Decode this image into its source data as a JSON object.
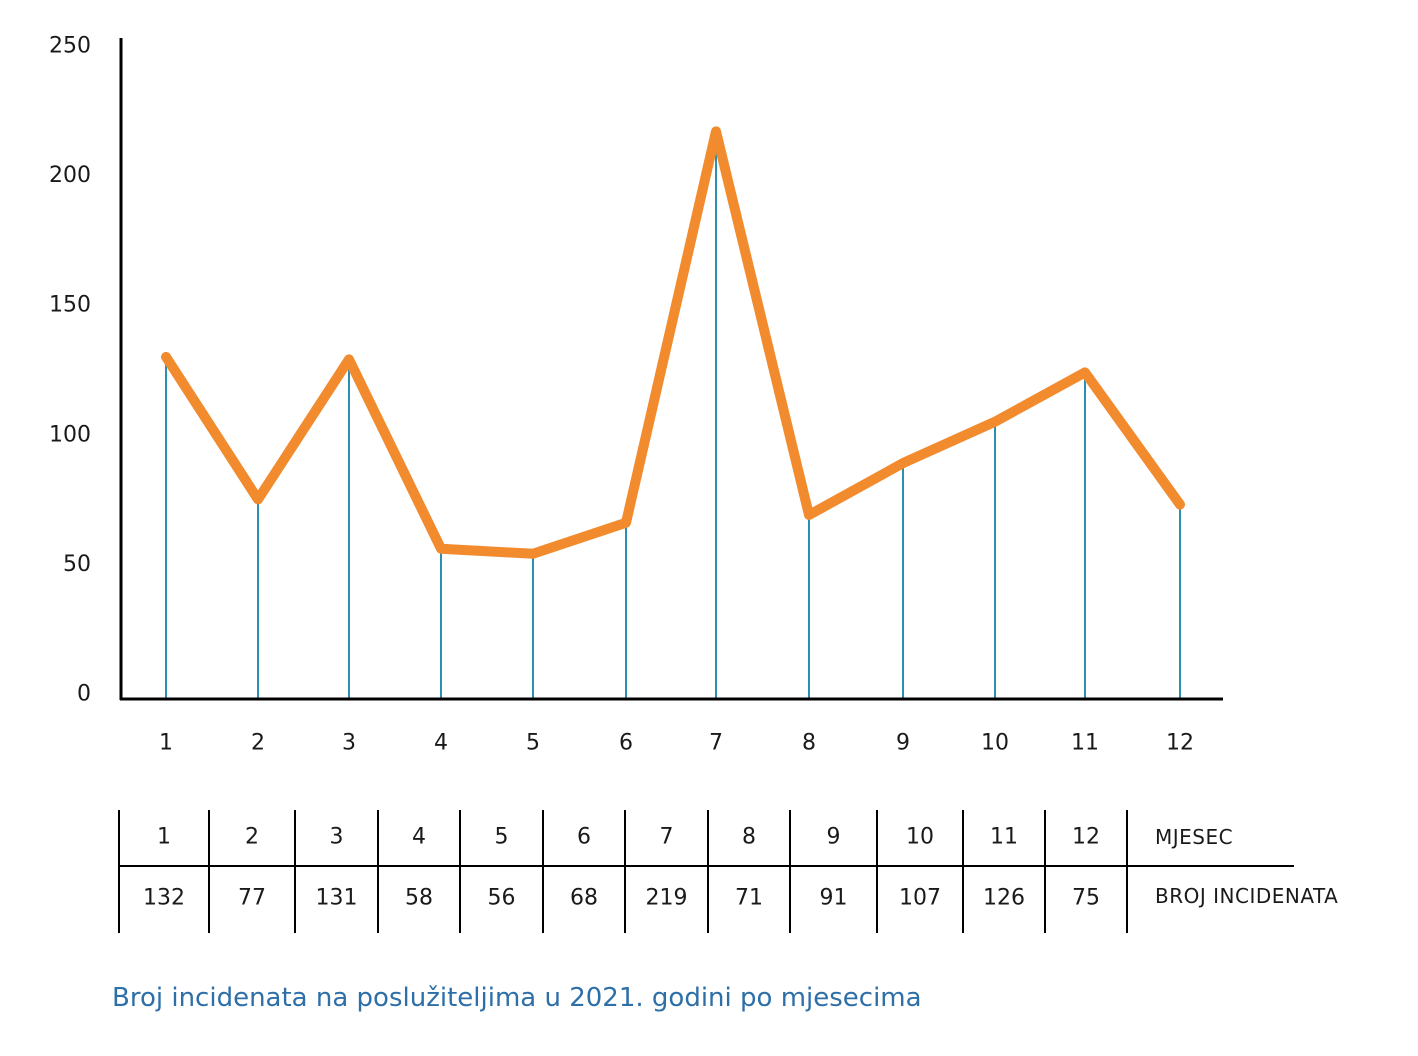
{
  "chart_data": {
    "type": "line",
    "categories": [
      "1",
      "2",
      "3",
      "4",
      "5",
      "6",
      "7",
      "8",
      "9",
      "10",
      "11",
      "12"
    ],
    "series": [
      {
        "values": [
          132,
          77,
          131,
          58,
          56,
          68,
          219,
          71,
          91,
          107,
          126,
          75
        ]
      }
    ],
    "ylim": [
      0,
      250
    ],
    "yticks": [
      "0",
      "50",
      "100",
      "150",
      "200",
      "250"
    ],
    "grid": false,
    "drop_lines": true,
    "colors": {
      "line": "#f28a2e",
      "drop_line": "#2a8fb0",
      "caption": "#2e6fa8"
    }
  },
  "table": {
    "row_labels": [
      "MJESEC",
      "BROJ INCIDENATA"
    ],
    "months": [
      "1",
      "2",
      "3",
      "4",
      "5",
      "6",
      "7",
      "8",
      "9",
      "10",
      "11",
      "12"
    ],
    "counts": [
      "132",
      "77",
      "131",
      "58",
      "56",
      "68",
      "219",
      "71",
      "91",
      "107",
      "126",
      "75"
    ]
  },
  "caption": "Broj incidenata na poslužiteljima u 2021. godini po mjesecima"
}
